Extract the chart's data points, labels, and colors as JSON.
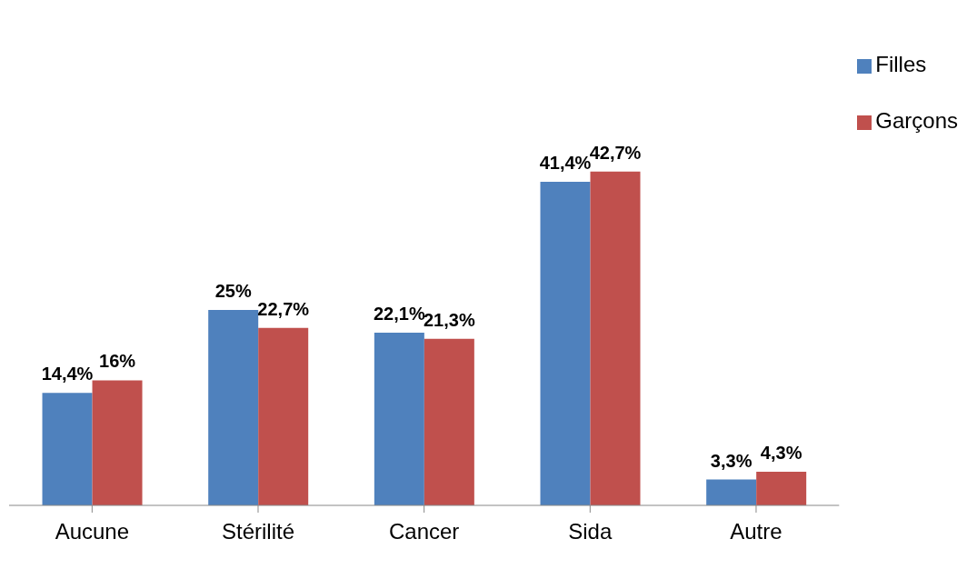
{
  "chart_data": {
    "type": "bar",
    "categories": [
      "Aucune",
      "Stérilité",
      "Cancer",
      "Sida",
      "Autre"
    ],
    "series": [
      {
        "name": "Filles",
        "color": "#4f81bd",
        "values": [
          14.4,
          25,
          22.1,
          41.4,
          3.3
        ],
        "value_labels": [
          "14,4%",
          "25%",
          "22,1%",
          "41,4%",
          "3,3%"
        ]
      },
      {
        "name": "Garçons",
        "color": "#c0504d",
        "values": [
          16,
          22.7,
          21.3,
          42.7,
          4.3
        ],
        "value_labels": [
          "16%",
          "22,7%",
          "21,3%",
          "42,7%",
          "4,3%"
        ]
      }
    ],
    "legend": "right",
    "grid": false
  }
}
